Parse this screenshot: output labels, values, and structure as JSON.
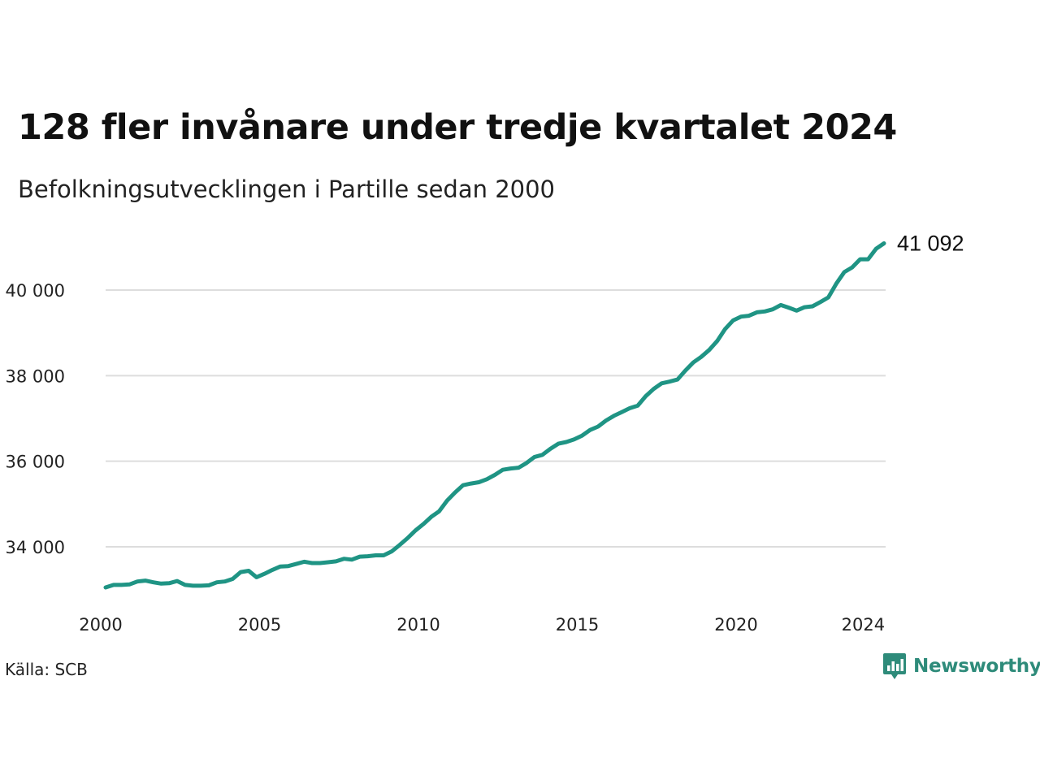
{
  "title": "128 fler invånare under tredje kvartalet 2024",
  "subtitle": "Befolkningsutvecklingen i Partille sedan 2000",
  "source": "Källa: SCB",
  "brand": {
    "name": "Newsworthy",
    "color": "#2e8b7a",
    "icon": "bar-chart-badge-icon"
  },
  "chart_data": {
    "type": "line",
    "title": "128 fler invånare under tredje kvartalet 2024",
    "subtitle": "Befolkningsutvecklingen i Partille sedan 2000",
    "xlabel": "",
    "ylabel": "",
    "xlim": [
      2000,
      2024.75
    ],
    "ylim": [
      32600,
      41400
    ],
    "x_ticks": [
      {
        "value": 2000,
        "label": "2000"
      },
      {
        "value": 2005,
        "label": "2005"
      },
      {
        "value": 2010,
        "label": "2010"
      },
      {
        "value": 2015,
        "label": "2015"
      },
      {
        "value": 2020,
        "label": "2020"
      },
      {
        "value": 2024,
        "label": "2024"
      }
    ],
    "y_ticks": [
      {
        "value": 34000,
        "label": "34 000"
      },
      {
        "value": 36000,
        "label": "36 000"
      },
      {
        "value": 38000,
        "label": "38 000"
      },
      {
        "value": 40000,
        "label": "40 000"
      }
    ],
    "grid": "horizontal",
    "line_color": "#1f9484",
    "end_label": "41 092",
    "series": [
      {
        "color": "#1f9484",
        "x": [
          2000.0,
          2000.25,
          2000.5,
          2000.75,
          2001.0,
          2001.25,
          2001.5,
          2001.75,
          2002.0,
          2002.25,
          2002.5,
          2002.75,
          2003.0,
          2003.25,
          2003.5,
          2003.75,
          2004.0,
          2004.25,
          2004.5,
          2004.75,
          2005.0,
          2005.25,
          2005.5,
          2005.75,
          2006.0,
          2006.25,
          2006.5,
          2006.75,
          2007.0,
          2007.25,
          2007.5,
          2007.75,
          2008.0,
          2008.25,
          2008.5,
          2008.75,
          2009.0,
          2009.25,
          2009.5,
          2009.75,
          2010.0,
          2010.25,
          2010.5,
          2010.75,
          2011.0,
          2011.25,
          2011.5,
          2011.75,
          2012.0,
          2012.25,
          2012.5,
          2012.75,
          2013.0,
          2013.25,
          2013.5,
          2013.75,
          2014.0,
          2014.25,
          2014.5,
          2014.75,
          2015.0,
          2015.25,
          2015.5,
          2015.75,
          2016.0,
          2016.25,
          2016.5,
          2016.75,
          2017.0,
          2017.25,
          2017.5,
          2017.75,
          2018.0,
          2018.25,
          2018.5,
          2018.75,
          2019.0,
          2019.25,
          2019.5,
          2019.75,
          2020.0,
          2020.25,
          2020.5,
          2020.75,
          2021.0,
          2021.25,
          2021.5,
          2021.75,
          2022.0,
          2022.25,
          2022.5,
          2022.75,
          2023.0,
          2023.25,
          2023.5,
          2023.75,
          2024.0,
          2024.25,
          2024.5
        ],
        "values": [
          33050,
          33110,
          33110,
          33120,
          33190,
          33210,
          33170,
          33140,
          33150,
          33200,
          33110,
          33090,
          33090,
          33100,
          33170,
          33190,
          33250,
          33410,
          33440,
          33290,
          33370,
          33460,
          33540,
          33550,
          33600,
          33650,
          33620,
          33620,
          33640,
          33660,
          33720,
          33700,
          33770,
          33780,
          33800,
          33800,
          33890,
          34040,
          34200,
          34380,
          34530,
          34700,
          34830,
          35080,
          35270,
          35440,
          35480,
          35510,
          35580,
          35680,
          35800,
          35830,
          35850,
          35960,
          36100,
          36150,
          36290,
          36410,
          36450,
          36510,
          36600,
          36730,
          36810,
          36950,
          37060,
          37150,
          37240,
          37300,
          37520,
          37690,
          37820,
          37860,
          37910,
          38120,
          38310,
          38440,
          38600,
          38810,
          39090,
          39290,
          39380,
          39400,
          39480,
          39500,
          39550,
          39650,
          39590,
          39520,
          39600,
          39620,
          39720,
          39830,
          40150,
          40420,
          40530,
          40720,
          40720,
          40964,
          41092
        ]
      }
    ]
  }
}
